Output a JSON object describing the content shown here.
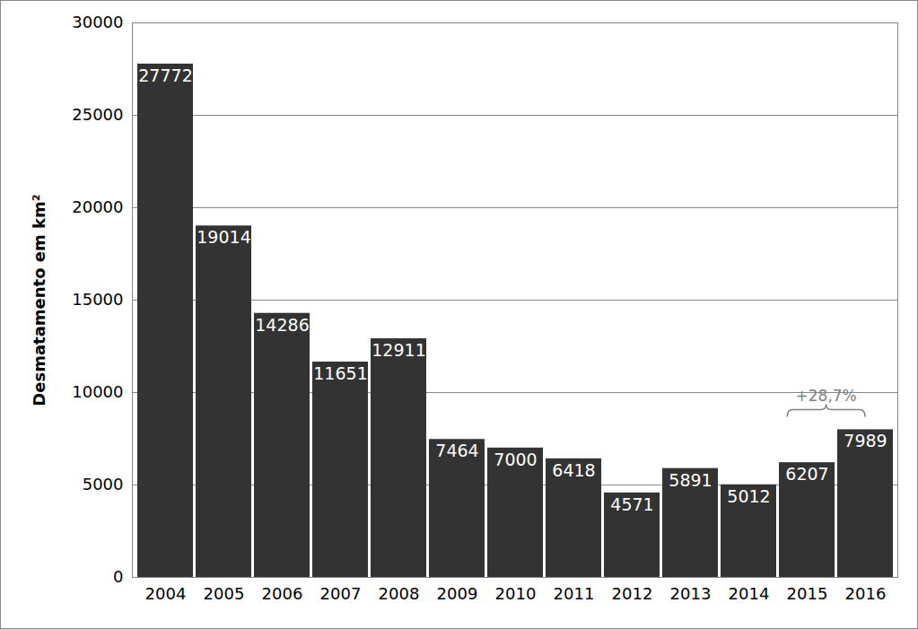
{
  "chart_data": {
    "type": "bar",
    "y_label": "Desmatamento em km²",
    "categories": [
      "2004",
      "2005",
      "2006",
      "2007",
      "2008",
      "2009",
      "2010",
      "2011",
      "2012",
      "2013",
      "2014",
      "2015",
      "2016"
    ],
    "values": [
      27772,
      19014,
      14286,
      11651,
      12911,
      7464,
      7000,
      6418,
      4571,
      5891,
      5012,
      6207,
      7989
    ],
    "color": "#333333",
    "ylim": [
      0,
      30000
    ],
    "yticks": [
      0,
      5000,
      10000,
      15000,
      20000,
      25000,
      30000
    ],
    "grid": true,
    "data_labels": true,
    "annotations": [
      {
        "text": "+28,7%",
        "from": "2015",
        "to": "2016"
      }
    ]
  }
}
